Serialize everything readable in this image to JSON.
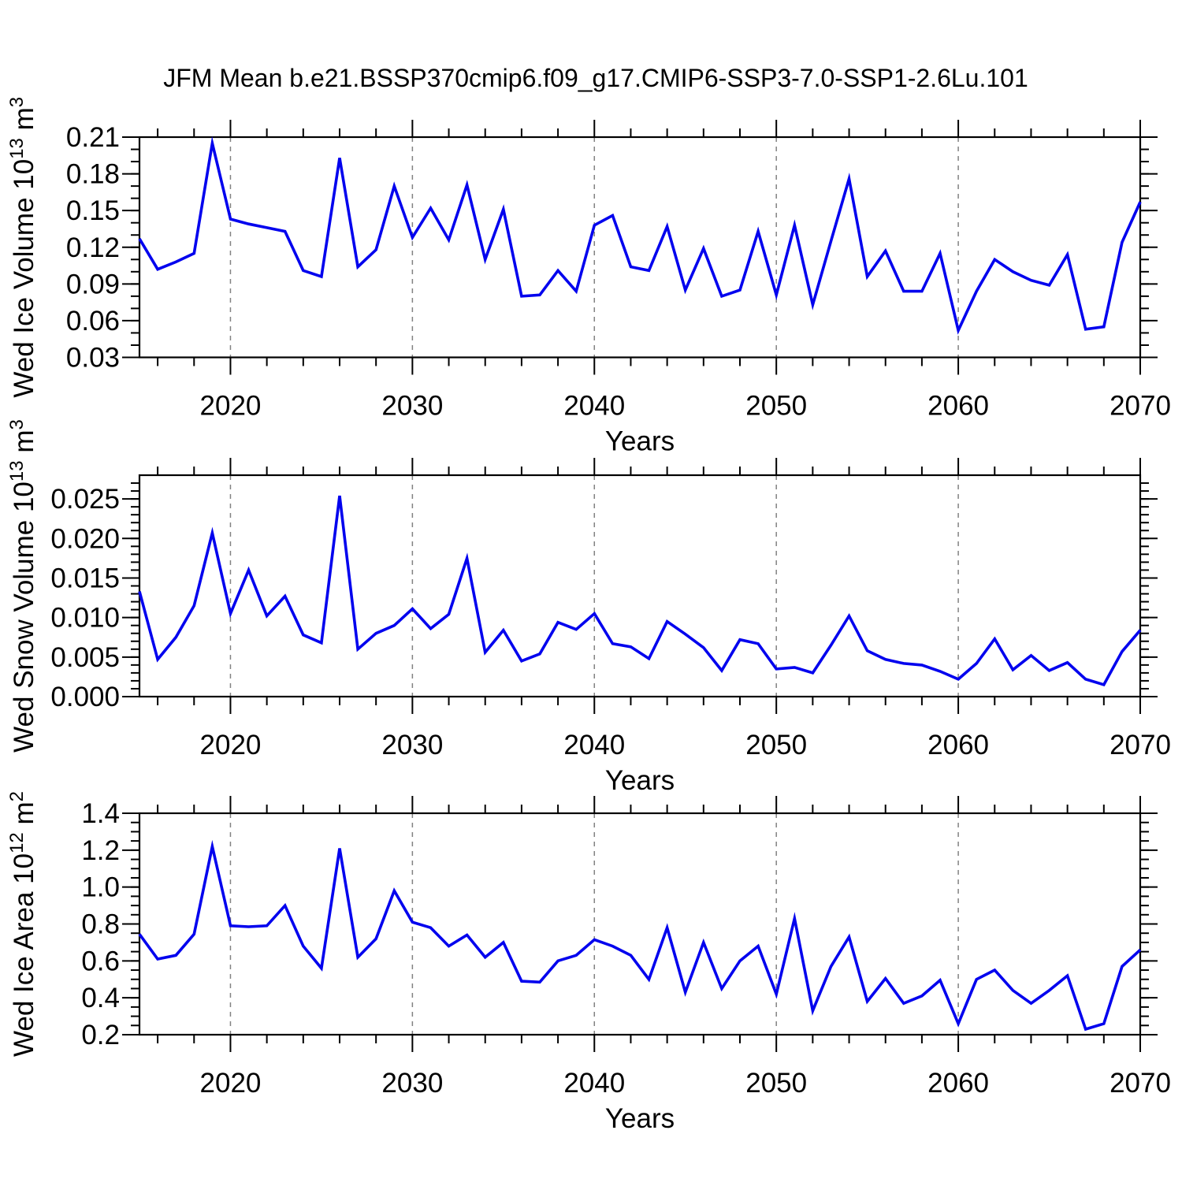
{
  "title": "JFM Mean b.e21.BSSP370cmip6.f09_g17.CMIP6-SSP3-7.0-SSP1-2.6Lu.101",
  "style": {
    "line_color": "#0202ee",
    "grid_color": "#828282",
    "axis_color": "#000000",
    "background": "#ffffff"
  },
  "chart_data": [
    {
      "type": "line",
      "panel": "ice-volume",
      "ylabel_segments": [
        {
          "t": "Wed Ice Volume 10"
        },
        {
          "t": "13",
          "sup": true
        },
        {
          "t": " m"
        },
        {
          "t": "3",
          "sup": true
        }
      ],
      "xlabel": "Years",
      "x": [
        2015,
        2016,
        2017,
        2018,
        2019,
        2020,
        2021,
        2022,
        2023,
        2024,
        2025,
        2026,
        2027,
        2028,
        2029,
        2030,
        2031,
        2032,
        2033,
        2034,
        2035,
        2036,
        2037,
        2038,
        2039,
        2040,
        2041,
        2042,
        2043,
        2044,
        2045,
        2046,
        2047,
        2048,
        2049,
        2050,
        2051,
        2052,
        2053,
        2054,
        2055,
        2056,
        2057,
        2058,
        2059,
        2060,
        2061,
        2062,
        2063,
        2064,
        2065,
        2066,
        2067,
        2068,
        2069,
        2070
      ],
      "values": [
        0.127,
        0.102,
        0.108,
        0.115,
        0.205,
        0.143,
        0.139,
        0.136,
        0.133,
        0.101,
        0.096,
        0.193,
        0.104,
        0.118,
        0.17,
        0.128,
        0.152,
        0.126,
        0.171,
        0.11,
        0.151,
        0.08,
        0.081,
        0.101,
        0.084,
        0.138,
        0.146,
        0.104,
        0.101,
        0.137,
        0.085,
        0.119,
        0.08,
        0.085,
        0.133,
        0.081,
        0.138,
        0.073,
        0.125,
        0.176,
        0.096,
        0.117,
        0.084,
        0.084,
        0.115,
        0.052,
        0.084,
        0.11,
        0.1,
        0.093,
        0.089,
        0.114,
        0.053,
        0.055,
        0.124,
        0.157
      ],
      "xlim": [
        2015,
        2070
      ],
      "ylim": [
        0.03,
        0.21
      ],
      "yticks": [
        0.03,
        0.06,
        0.09,
        0.12,
        0.15,
        0.18,
        0.21
      ],
      "ytick_labels": [
        "0.03",
        "0.06",
        "0.09",
        "0.12",
        "0.15",
        "0.18",
        "0.21"
      ],
      "minor_y": {
        "start": 0.03,
        "step": 0.01,
        "end": 0.21
      },
      "xticks": [
        2020,
        2030,
        2040,
        2050,
        2060,
        2070
      ],
      "xtick_labels": [
        "2020",
        "2030",
        "2040",
        "2050",
        "2060",
        "2070"
      ],
      "minor_x": {
        "start": 2016,
        "step": 2,
        "end": 2068
      },
      "grid_x": [
        2020,
        2030,
        2040,
        2050,
        2060
      ],
      "grid": "vertical-dashed",
      "legend": "none"
    },
    {
      "type": "line",
      "panel": "snow-volume",
      "ylabel_segments": [
        {
          "t": "Wed Snow Volume 10"
        },
        {
          "t": "13",
          "sup": true
        },
        {
          "t": " m"
        },
        {
          "t": "3",
          "sup": true
        }
      ],
      "xlabel": "Years",
      "x": [
        2015,
        2016,
        2017,
        2018,
        2019,
        2020,
        2021,
        2022,
        2023,
        2024,
        2025,
        2026,
        2027,
        2028,
        2029,
        2030,
        2031,
        2032,
        2033,
        2034,
        2035,
        2036,
        2037,
        2038,
        2039,
        2040,
        2041,
        2042,
        2043,
        2044,
        2045,
        2046,
        2047,
        2048,
        2049,
        2050,
        2051,
        2052,
        2053,
        2054,
        2055,
        2056,
        2057,
        2058,
        2059,
        2060,
        2061,
        2062,
        2063,
        2064,
        2065,
        2066,
        2067,
        2068,
        2069,
        2070
      ],
      "values": [
        0.0133,
        0.0047,
        0.0075,
        0.0115,
        0.0207,
        0.0105,
        0.016,
        0.0102,
        0.0127,
        0.0078,
        0.0068,
        0.0254,
        0.006,
        0.008,
        0.009,
        0.0111,
        0.0086,
        0.0104,
        0.0175,
        0.0056,
        0.0084,
        0.0045,
        0.0054,
        0.0094,
        0.0085,
        0.0105,
        0.0067,
        0.0063,
        0.0048,
        0.0095,
        0.0079,
        0.0062,
        0.0033,
        0.0072,
        0.0067,
        0.0035,
        0.0037,
        0.003,
        0.0065,
        0.0102,
        0.0058,
        0.0047,
        0.0042,
        0.004,
        0.0032,
        0.0022,
        0.0042,
        0.0073,
        0.0034,
        0.0052,
        0.0033,
        0.0043,
        0.0022,
        0.0015,
        0.0057,
        0.0084
      ],
      "xlim": [
        2015,
        2070
      ],
      "ylim": [
        0.0,
        0.028
      ],
      "yticks": [
        0.0,
        0.005,
        0.01,
        0.015,
        0.02,
        0.025
      ],
      "ytick_labels": [
        "0.000",
        "0.005",
        "0.010",
        "0.015",
        "0.020",
        "0.025"
      ],
      "minor_y": {
        "start": 0.0,
        "step": 0.001,
        "end": 0.027
      },
      "xticks": [
        2020,
        2030,
        2040,
        2050,
        2060,
        2070
      ],
      "xtick_labels": [
        "2020",
        "2030",
        "2040",
        "2050",
        "2060",
        "2070"
      ],
      "minor_x": {
        "start": 2016,
        "step": 2,
        "end": 2068
      },
      "grid_x": [
        2020,
        2030,
        2040,
        2050,
        2060
      ],
      "grid": "vertical-dashed",
      "legend": "none"
    },
    {
      "type": "line",
      "panel": "ice-area",
      "ylabel_segments": [
        {
          "t": "Wed Ice Area 10"
        },
        {
          "t": "12",
          "sup": true
        },
        {
          "t": " m"
        },
        {
          "t": "2",
          "sup": true
        }
      ],
      "xlabel": "Years",
      "x": [
        2015,
        2016,
        2017,
        2018,
        2019,
        2020,
        2021,
        2022,
        2023,
        2024,
        2025,
        2026,
        2027,
        2028,
        2029,
        2030,
        2031,
        2032,
        2033,
        2034,
        2035,
        2036,
        2037,
        2038,
        2039,
        2040,
        2041,
        2042,
        2043,
        2044,
        2045,
        2046,
        2047,
        2048,
        2049,
        2050,
        2051,
        2052,
        2053,
        2054,
        2055,
        2056,
        2057,
        2058,
        2059,
        2060,
        2061,
        2062,
        2063,
        2064,
        2065,
        2066,
        2067,
        2068,
        2069,
        2070
      ],
      "values": [
        0.745,
        0.61,
        0.63,
        0.745,
        1.22,
        0.79,
        0.785,
        0.79,
        0.9,
        0.68,
        0.56,
        1.21,
        0.62,
        0.72,
        0.98,
        0.81,
        0.78,
        0.68,
        0.74,
        0.62,
        0.7,
        0.49,
        0.485,
        0.6,
        0.63,
        0.715,
        0.68,
        0.63,
        0.5,
        0.78,
        0.43,
        0.7,
        0.45,
        0.6,
        0.68,
        0.42,
        0.83,
        0.33,
        0.57,
        0.73,
        0.38,
        0.505,
        0.37,
        0.41,
        0.495,
        0.26,
        0.5,
        0.55,
        0.44,
        0.37,
        0.44,
        0.52,
        0.23,
        0.26,
        0.57,
        0.66
      ],
      "xlim": [
        2015,
        2070
      ],
      "ylim": [
        0.2,
        1.4
      ],
      "yticks": [
        0.2,
        0.4,
        0.6,
        0.8,
        1.0,
        1.2,
        1.4
      ],
      "ytick_labels": [
        "0.2",
        "0.4",
        "0.6",
        "0.8",
        "1.0",
        "1.2",
        "1.4"
      ],
      "minor_y": {
        "start": 0.2,
        "step": 0.05,
        "end": 1.4
      },
      "xticks": [
        2020,
        2030,
        2040,
        2050,
        2060,
        2070
      ],
      "xtick_labels": [
        "2020",
        "2030",
        "2040",
        "2050",
        "2060",
        "2070"
      ],
      "minor_x": {
        "start": 2016,
        "step": 2,
        "end": 2068
      },
      "grid_x": [
        2020,
        2030,
        2040,
        2050,
        2060
      ],
      "grid": "vertical-dashed",
      "legend": "none"
    }
  ]
}
